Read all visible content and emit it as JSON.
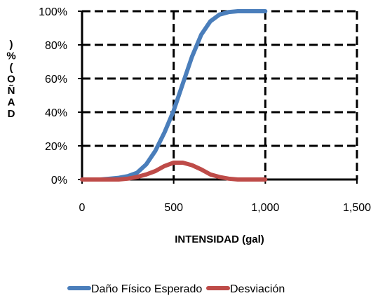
{
  "chart_data": {
    "type": "line",
    "xlabel": "INTENSIDAD (gal)",
    "ylabel": ") % ( O Ñ A D",
    "xlim": [
      0,
      1500
    ],
    "ylim": [
      0,
      100
    ],
    "x_ticks": [
      "0",
      "500",
      "1,000",
      "1,500"
    ],
    "y_ticks": [
      "0%",
      "20%",
      "40%",
      "60%",
      "80%",
      "100%"
    ],
    "grid": true,
    "legend_position": "bottom",
    "series": [
      {
        "name": "Daño Físico Esperado",
        "color": "#4A7EBB",
        "x": [
          0,
          50,
          100,
          150,
          200,
          250,
          300,
          350,
          400,
          450,
          500,
          550,
          600,
          650,
          700,
          750,
          800,
          850,
          900,
          950,
          1000
        ],
        "y": [
          0,
          0,
          0,
          0.5,
          1,
          2,
          4,
          9,
          17,
          28,
          41,
          57,
          73,
          86,
          94,
          98,
          99.5,
          100,
          100,
          100,
          100
        ]
      },
      {
        "name": "Desviación",
        "color": "#BE4B48",
        "x": [
          0,
          50,
          100,
          150,
          200,
          250,
          300,
          350,
          400,
          450,
          500,
          550,
          600,
          650,
          700,
          750,
          800,
          850,
          900,
          950,
          1000
        ],
        "y": [
          0,
          0,
          0,
          0,
          0,
          0.5,
          1.5,
          3,
          5,
          8,
          10,
          10,
          8.5,
          6,
          3,
          1.5,
          0.5,
          0,
          0,
          0,
          0
        ]
      }
    ]
  }
}
